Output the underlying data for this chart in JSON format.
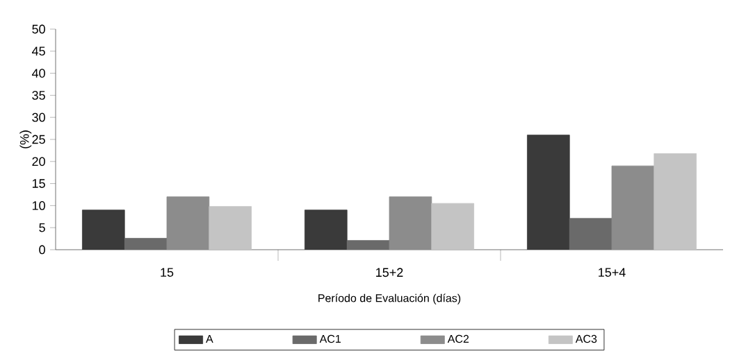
{
  "chart_data": {
    "type": "bar",
    "xlabel": "Período de Evaluación (días)",
    "ylabel": "(%)",
    "categories": [
      "15",
      "15+2",
      "15+4"
    ],
    "series": [
      {
        "name": "A",
        "color": "#3a3a3a",
        "values": [
          9,
          9,
          26
        ]
      },
      {
        "name": "AC1",
        "color": "#6a6a6a",
        "values": [
          2.6,
          2.1,
          7.1
        ]
      },
      {
        "name": "AC2",
        "color": "#8c8c8c",
        "values": [
          12,
          12,
          19
        ]
      },
      {
        "name": "AC3",
        "color": "#c4c4c4",
        "values": [
          9.8,
          10.5,
          21.8
        ]
      }
    ],
    "ylim": [
      0,
      50
    ],
    "yticks": [
      0,
      5,
      10,
      15,
      20,
      25,
      30,
      35,
      40,
      45,
      50
    ],
    "grid": false,
    "legend": "bottom"
  }
}
